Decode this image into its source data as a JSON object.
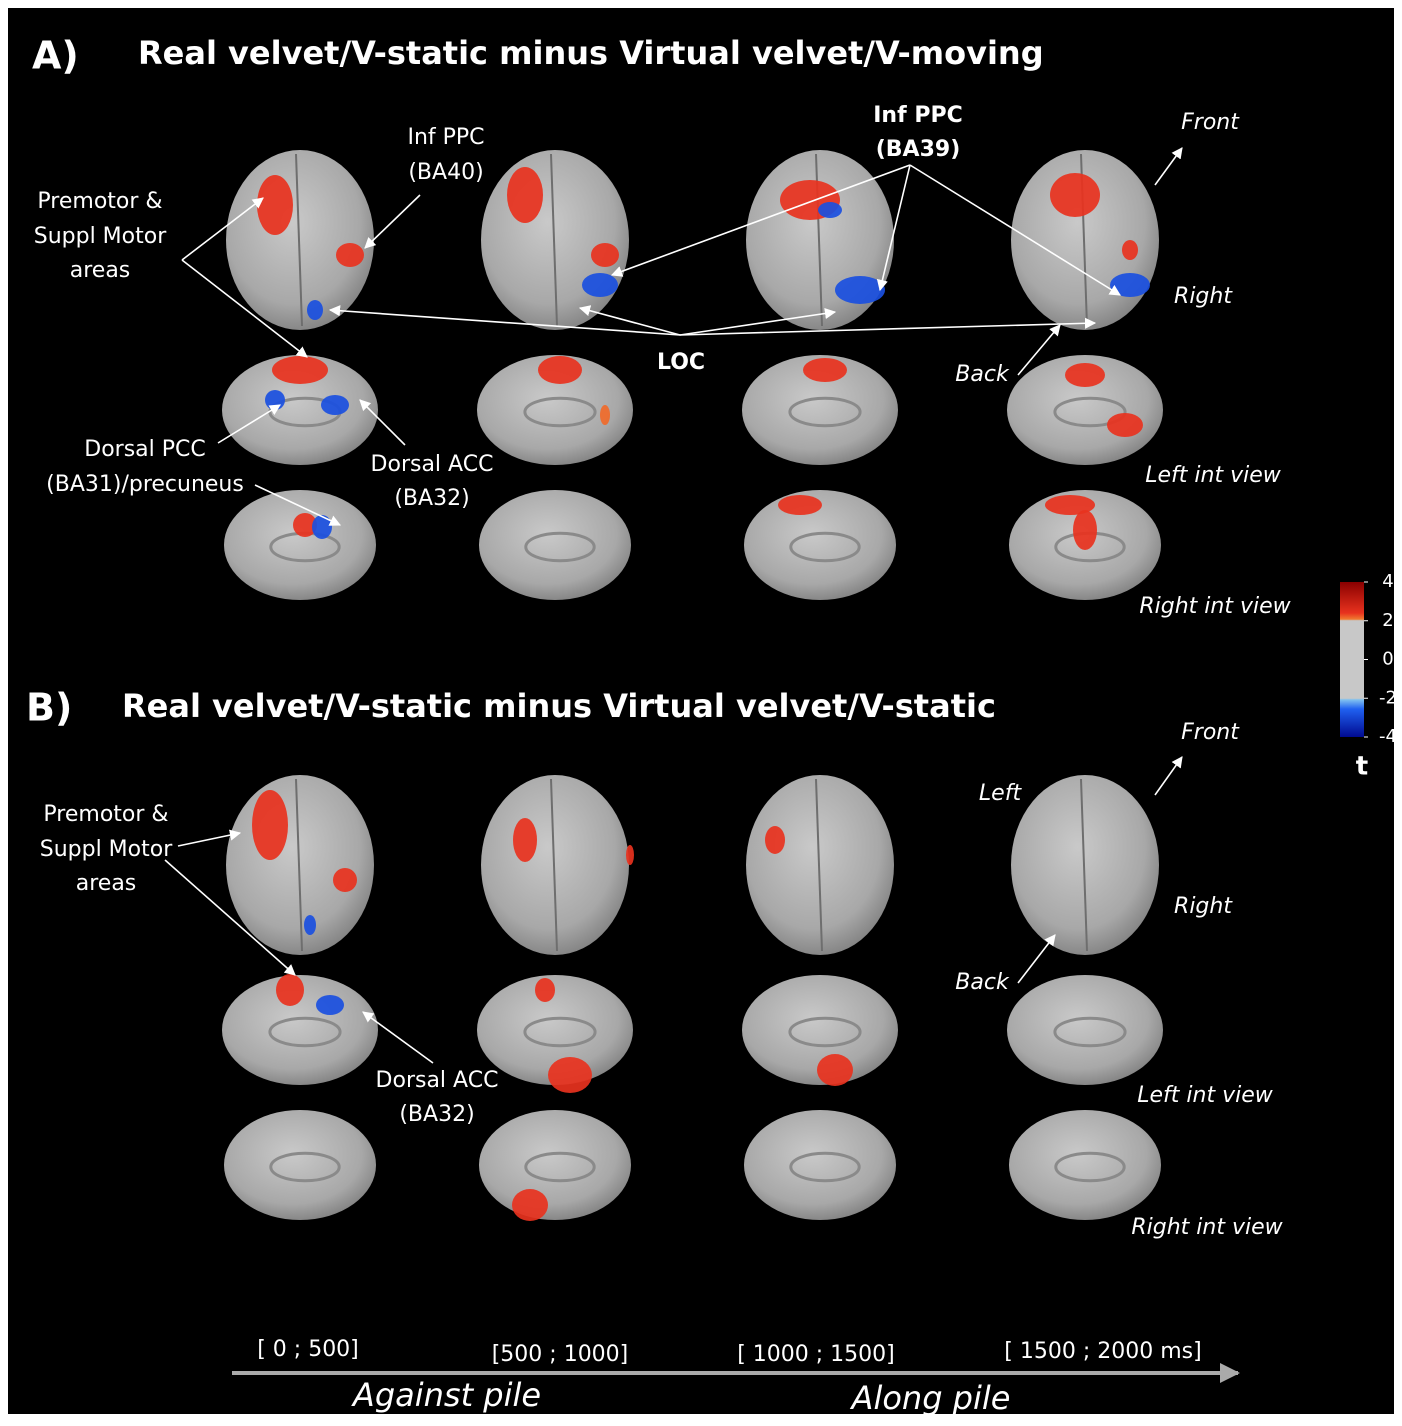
{
  "panel_a": {
    "letter": "A)",
    "title": "Real velvet/V-static minus Virtual velvet/V-moving",
    "premotor": [
      "Premotor &",
      "Suppl Motor",
      "areas"
    ],
    "inf_ppc_ba40": [
      "Inf PPC",
      "(BA40)"
    ],
    "inf_ppc_ba39": [
      "Inf PPC",
      "(BA39)"
    ],
    "front": "Front",
    "right": "Right",
    "back": "Back",
    "loc": "LOC",
    "dorsal_pcc": [
      "Dorsal PCC",
      "(BA31)/precuneus"
    ],
    "dorsal_acc": [
      "Dorsal ACC",
      "(BA32)"
    ],
    "left_int_view": "Left int view",
    "right_int_view": "Right int view"
  },
  "panel_b": {
    "letter": "B)",
    "title": "Real velvet/V-static minus Virtual velvet/V-static",
    "premotor": [
      "Premotor &",
      "Suppl Motor",
      "areas"
    ],
    "dorsal_acc": [
      "Dorsal ACC",
      "(BA32)"
    ],
    "front": "Front",
    "left": "Left",
    "right": "Right",
    "back": "Back",
    "left_int_view": "Left int view",
    "right_int_view": "Right int view"
  },
  "time_axis": {
    "windows": [
      "[ 0 ; 500]",
      "[500 ; 1000]",
      "[ 1000 ; 1500]",
      "[ 1500 ; 2000 ms]"
    ],
    "directions": [
      "Against pile",
      "Along pile"
    ]
  },
  "colorbar": {
    "label": "t",
    "lim": [
      -4,
      4
    ],
    "ticks": [
      4,
      2,
      0,
      -2,
      -4
    ]
  }
}
